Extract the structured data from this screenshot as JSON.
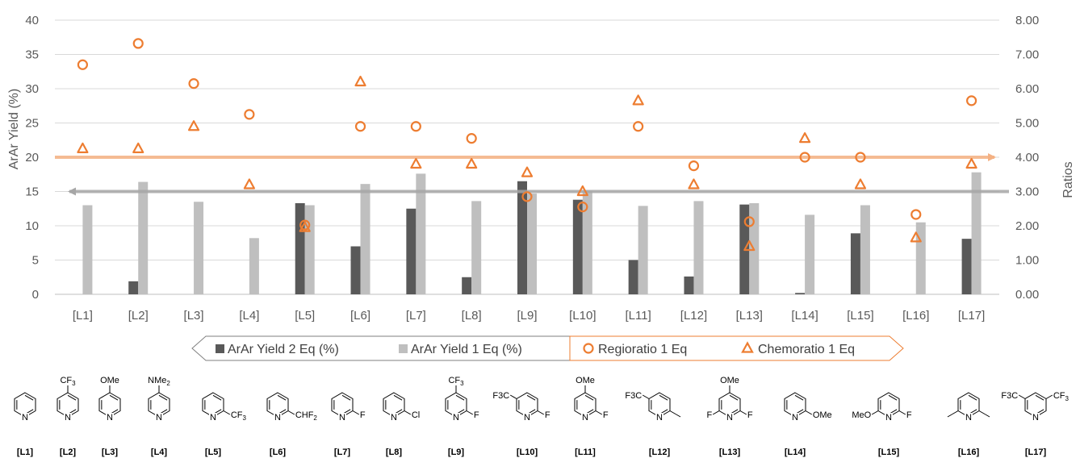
{
  "chart_data": {
    "type": "bar",
    "categories": [
      "[L1]",
      "[L2]",
      "[L3]",
      "[L4]",
      "[L5]",
      "[L6]",
      "[L7]",
      "[L8]",
      "[L9]",
      "[L10]",
      "[L11]",
      "[L12]",
      "[L13]",
      "[L14]",
      "[L15]",
      "[L16]",
      "[L17]"
    ],
    "ylabel": "ArAr Yield (%)",
    "y2label": "Ratios",
    "ylim": [
      0,
      40
    ],
    "y2lim": [
      0,
      8
    ],
    "y_ticks": [
      "0",
      "5",
      "10",
      "15",
      "20",
      "25",
      "30",
      "35",
      "40"
    ],
    "y2_ticks": [
      "0.00",
      "1.00",
      "2.00",
      "3.00",
      "4.00",
      "5.00",
      "6.00",
      "7.00",
      "8.00"
    ],
    "grid": true,
    "legend_position": "bottom",
    "series": [
      {
        "name": "ArAr Yield 2 Eq (%)",
        "kind": "bar",
        "axis": "left",
        "color": "#595959",
        "values": [
          0,
          1.9,
          0,
          0,
          13.3,
          7.0,
          12.5,
          2.5,
          16.5,
          13.8,
          5.0,
          2.6,
          13.1,
          0.2,
          8.9,
          0,
          8.1
        ]
      },
      {
        "name": "ArAr Yield 1 Eq (%)",
        "kind": "bar",
        "axis": "left",
        "color": "#bfbfbf",
        "values": [
          13.0,
          16.4,
          13.5,
          8.2,
          13.0,
          16.1,
          17.6,
          13.6,
          14.7,
          15.1,
          12.9,
          13.6,
          13.3,
          11.6,
          13.0,
          10.5,
          17.8
        ]
      },
      {
        "name": "Regioratio 1 Eq",
        "kind": "scatter",
        "marker": "circle",
        "axis": "right",
        "color": "#ed7d31",
        "values": [
          6.7,
          7.32,
          6.15,
          5.25,
          2.02,
          4.9,
          4.9,
          4.55,
          2.85,
          2.55,
          4.9,
          3.75,
          2.12,
          4.0,
          4.0,
          2.33,
          5.65
        ]
      },
      {
        "name": "Chemoratio 1 Eq",
        "kind": "scatter",
        "marker": "triangle",
        "axis": "right",
        "color": "#ed7d31",
        "values": [
          4.25,
          4.25,
          4.9,
          3.2,
          1.95,
          6.2,
          3.8,
          3.8,
          3.55,
          3.0,
          5.65,
          3.2,
          1.4,
          4.55,
          3.2,
          1.65,
          3.8
        ]
      }
    ],
    "reference_lines": [
      {
        "axis": "right",
        "value": 4.0,
        "direction": "right",
        "color": "#f4b183"
      },
      {
        "axis": "right",
        "value": 3.0,
        "direction": "left",
        "color": "#a6a6a6"
      }
    ]
  },
  "ligands": [
    {
      "label": "[L1]",
      "type": "pyridine",
      "subs": []
    },
    {
      "label": "[L2]",
      "type": "pyridine",
      "subs": [
        {
          "pos": "para",
          "text": "CF3"
        }
      ]
    },
    {
      "label": "[L3]",
      "type": "pyridine",
      "subs": [
        {
          "pos": "para",
          "text": "OMe"
        }
      ]
    },
    {
      "label": "[L4]",
      "type": "pyridine",
      "subs": [
        {
          "pos": "para",
          "text": "NMe2"
        }
      ]
    },
    {
      "label": "[L5]",
      "type": "pyridine",
      "subs": [
        {
          "pos": "ortho",
          "text": "CF3"
        }
      ]
    },
    {
      "label": "[L6]",
      "type": "pyridine",
      "subs": [
        {
          "pos": "ortho",
          "text": "CHF2"
        }
      ]
    },
    {
      "label": "[L7]",
      "type": "pyridine",
      "subs": [
        {
          "pos": "ortho",
          "text": "F"
        }
      ]
    },
    {
      "label": "[L8]",
      "type": "pyridine",
      "subs": [
        {
          "pos": "ortho",
          "text": "Cl"
        }
      ]
    },
    {
      "label": "[L9]",
      "type": "pyridine",
      "subs": [
        {
          "pos": "para",
          "text": "CF3"
        },
        {
          "pos": "ortho",
          "text": "F"
        }
      ]
    },
    {
      "label": "[L10]",
      "type": "pyridine",
      "subs": [
        {
          "pos": "meta",
          "text": "F3C"
        },
        {
          "pos": "ortho",
          "text": "F"
        }
      ]
    },
    {
      "label": "[L11]",
      "type": "pyridine",
      "subs": [
        {
          "pos": "para",
          "text": "OMe"
        },
        {
          "pos": "ortho",
          "text": "F"
        }
      ]
    },
    {
      "label": "[L12]",
      "type": "pyridine",
      "subs": [
        {
          "pos": "meta",
          "text": "F3C"
        },
        {
          "pos": "ortho",
          "text": "methyl"
        }
      ]
    },
    {
      "label": "[L13]",
      "type": "pyridine",
      "subs": [
        {
          "pos": "para",
          "text": "OMe"
        },
        {
          "pos": "ortho2",
          "text": "F"
        },
        {
          "pos": "ortho",
          "text": "F"
        }
      ]
    },
    {
      "label": "[L14]",
      "type": "pyridine",
      "subs": [
        {
          "pos": "ortho",
          "text": "OMe"
        }
      ]
    },
    {
      "label": "[L15]",
      "type": "pyridine",
      "subs": [
        {
          "pos": "ortho2",
          "text": "MeO"
        },
        {
          "pos": "ortho",
          "text": "F"
        }
      ]
    },
    {
      "label": "[L16]",
      "type": "pyridine",
      "subs": [
        {
          "pos": "ortho2",
          "text": "methyl"
        },
        {
          "pos": "ortho",
          "text": "methyl"
        }
      ]
    },
    {
      "label": "[L17]",
      "type": "pyridine",
      "subs": [
        {
          "pos": "meta",
          "text": "F3C"
        },
        {
          "pos": "meta2",
          "text": "CF3"
        }
      ]
    }
  ]
}
